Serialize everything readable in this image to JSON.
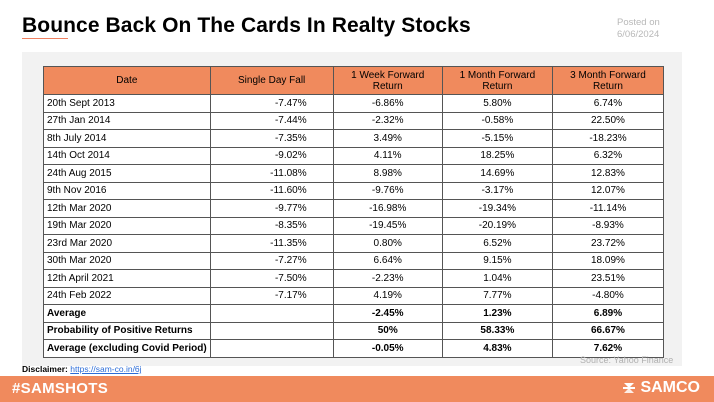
{
  "title": "Bounce Back On The Cards In Realty Stocks",
  "posted": {
    "line1": "Posted on",
    "line2": "6/06/2024"
  },
  "table": {
    "headers": [
      "Date",
      "Single Day Fall",
      "1 Week Forward Return",
      "1 Month Forward Return",
      "3 Month Forward Return"
    ],
    "rows": [
      [
        "20th Sept 2013",
        "-7.47%",
        "-6.86%",
        "5.80%",
        "6.74%"
      ],
      [
        "27th Jan 2014",
        "-7.44%",
        "-2.32%",
        "-0.58%",
        "22.50%"
      ],
      [
        "8th July 2014",
        "-7.35%",
        "3.49%",
        "-5.15%",
        "-18.23%"
      ],
      [
        "14th Oct 2014",
        "-9.02%",
        "4.11%",
        "18.25%",
        "6.32%"
      ],
      [
        "24th Aug 2015",
        "-11.08%",
        "8.98%",
        "14.69%",
        "12.83%"
      ],
      [
        "9th Nov 2016",
        "-11.60%",
        "-9.76%",
        "-3.17%",
        "12.07%"
      ],
      [
        "12th Mar 2020",
        "-9.77%",
        "-16.98%",
        "-19.34%",
        "-11.14%"
      ],
      [
        "19th Mar 2020",
        "-8.35%",
        "-19.45%",
        "-20.19%",
        "-8.93%"
      ],
      [
        "23rd Mar 2020",
        "-11.35%",
        "0.80%",
        "6.52%",
        "23.72%"
      ],
      [
        "30th Mar 2020",
        "-7.27%",
        "6.64%",
        "9.15%",
        "18.09%"
      ],
      [
        "12th April 2021",
        "-7.50%",
        "-2.23%",
        "1.04%",
        "23.51%"
      ],
      [
        "24th Feb 2022",
        "-7.17%",
        "4.19%",
        "7.77%",
        "-4.80%"
      ]
    ],
    "summary": [
      [
        "Average",
        "",
        "-2.45%",
        "1.23%",
        "6.89%"
      ],
      [
        "Probability of Positive Returns",
        "",
        "50%",
        "58.33%",
        "66.67%"
      ],
      [
        "Average (excluding Covid Period)",
        "",
        "-0.05%",
        "4.83%",
        "7.62%"
      ]
    ]
  },
  "source": "Source: Yahoo Finance",
  "disclaimer": {
    "label": "Disclaimer:",
    "link": "https://sam-co.in/6j"
  },
  "footer": {
    "hashtag": "#SAMSHOTS",
    "brand": "SAMCO"
  },
  "colors": {
    "accent": "#f08a5d",
    "link": "#2b6cd8"
  }
}
